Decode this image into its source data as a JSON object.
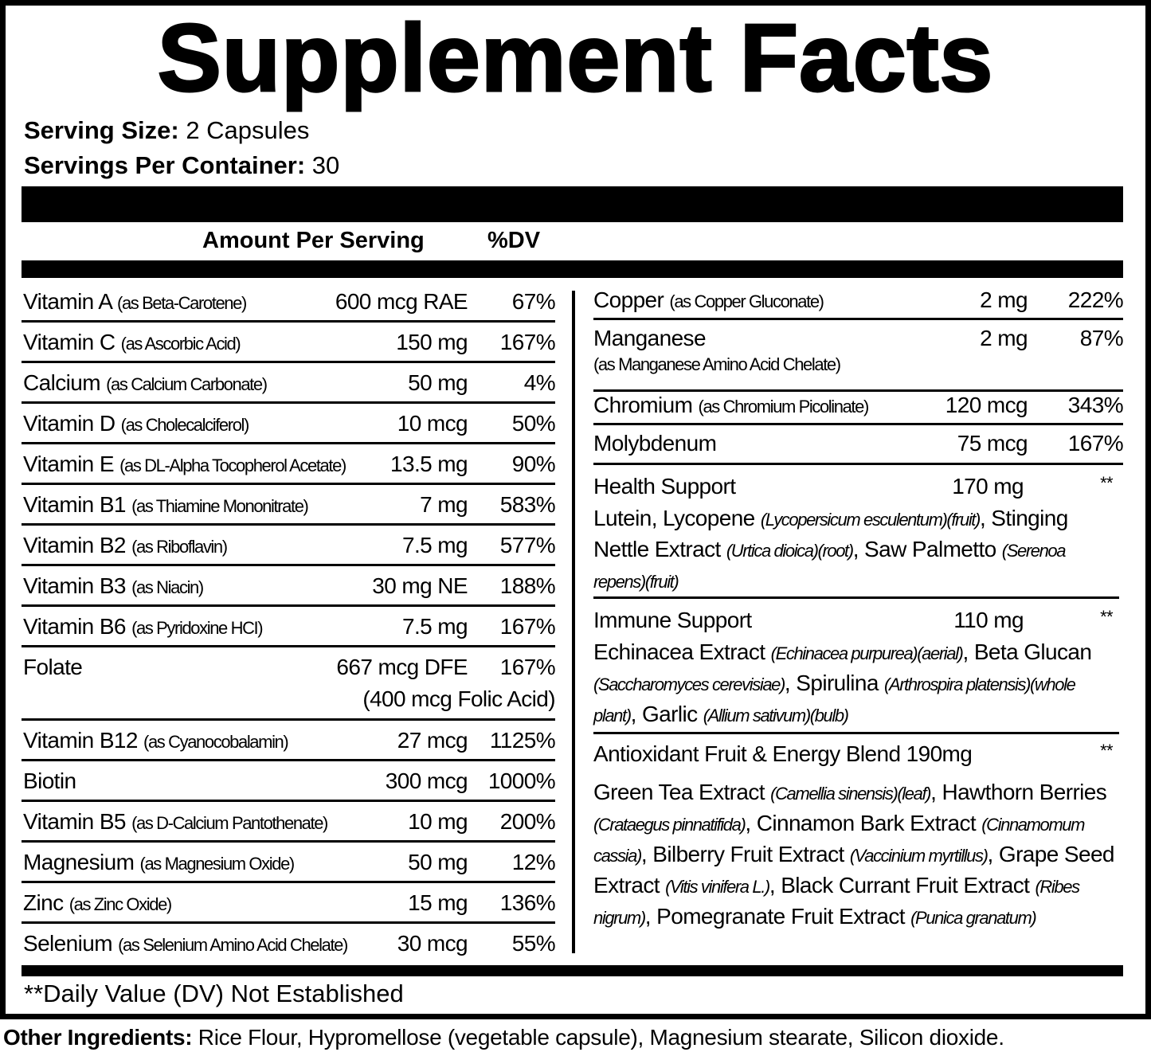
{
  "title": "Supplement Facts",
  "serving_size": {
    "label": "Serving Size:",
    "value": "2 Capsules"
  },
  "servings_per_container": {
    "label": "Servings Per Container:",
    "value": "30"
  },
  "header": {
    "amount": "Amount Per Serving",
    "dv": "%DV"
  },
  "left": [
    {
      "name": "Vitamin A",
      "sub": "(as Beta-Carotene)",
      "amount": "600 mcg RAE",
      "dv": "67%"
    },
    {
      "name": "Vitamin C",
      "sub": "(as Ascorbic Acid)",
      "amount": "150 mg",
      "dv": "167%"
    },
    {
      "name": "Calcium",
      "sub": "(as Calcium Carbonate)",
      "amount": "50 mg",
      "dv": "4%"
    },
    {
      "name": "Vitamin D",
      "sub": "(as Cholecalciferol)",
      "amount": "10 mcg",
      "dv": "50%"
    },
    {
      "name": "Vitamin E",
      "sub": "(as DL-Alpha Tocopherol Acetate)",
      "amount": "13.5 mg",
      "dv": "90%"
    },
    {
      "name": "Vitamin B1",
      "sub": "(as Thiamine Mononitrate)",
      "amount": "7 mg",
      "dv": "583%"
    },
    {
      "name": "Vitamin B2",
      "sub": "(as Riboflavin)",
      "amount": "7.5 mg",
      "dv": "577%"
    },
    {
      "name": "Vitamin B3",
      "sub": "(as Niacin)",
      "amount": "30 mg NE",
      "dv": "188%"
    },
    {
      "name": "Vitamin B6",
      "sub": "(as Pyridoxine HCI)",
      "amount": "7.5 mg",
      "dv": "167%"
    },
    {
      "name": "Folate",
      "sub": "",
      "amount": "667 mcg DFE",
      "dv": "167%",
      "amount2": "(400 mcg Folic Acid)"
    },
    {
      "name": "Vitamin B12",
      "sub": "(as Cyanocobalamin)",
      "amount": "27 mcg",
      "dv": "1125%"
    },
    {
      "name": "Biotin",
      "sub": "",
      "amount": "300 mcg",
      "dv": "1000%"
    },
    {
      "name": "Vitamin B5",
      "sub": "(as D-Calcium Pantothenate)",
      "amount": "10 mg",
      "dv": "200%"
    },
    {
      "name": "Magnesium",
      "sub": "(as Magnesium Oxide)",
      "amount": "50 mg",
      "dv": "12%"
    },
    {
      "name": "Zinc",
      "sub": "(as Zinc Oxide)",
      "amount": "15 mg",
      "dv": "136%"
    },
    {
      "name": "Selenium",
      "sub": "(as Selenium Amino Acid Chelate)",
      "amount": "30 mcg",
      "dv": "55%"
    }
  ],
  "right": [
    {
      "name": "Copper",
      "sub": "(as Copper Gluconate)",
      "amount": "2 mg",
      "dv": "222%"
    },
    {
      "name": "Manganese",
      "sub": "(as Manganese Amino Acid Chelate)",
      "amount": "2 mg",
      "dv": "87%"
    },
    {
      "name": "Chromium",
      "sub": "(as Chromium Picolinate)",
      "amount": "120 mcg",
      "dv": "343%"
    },
    {
      "name": "Molybdenum",
      "sub": "",
      "amount": "75 mcg",
      "dv": "167%"
    }
  ],
  "blends": [
    {
      "name": "Health Support",
      "amount": "170 mg",
      "dv": "**",
      "parts": [
        [
          "Lutein, Lycopene ",
          ""
        ],
        [
          "(Lycopersicum esculentum)(fruit)",
          "i"
        ],
        [
          ", Stinging Nettle Extract ",
          ""
        ],
        [
          "(Urtica dioica)(root)",
          "i"
        ],
        [
          ", Saw Palmetto ",
          ""
        ],
        [
          "(Serenoa repens)(fruit)",
          "i"
        ]
      ]
    },
    {
      "name": "Immune Support",
      "amount": "110 mg",
      "dv": "**",
      "parts": [
        [
          "Echinacea Extract ",
          ""
        ],
        [
          "(Echinacea purpurea)(aerial)",
          "i"
        ],
        [
          ", Beta Glucan ",
          ""
        ],
        [
          "(Saccharomyces cerevisiae)",
          "i"
        ],
        [
          ", Spirulina ",
          ""
        ],
        [
          "(Arthrospira platensis)(whole plant)",
          "i"
        ],
        [
          ", Garlic ",
          ""
        ],
        [
          "(Allium sativum)(bulb)",
          "i"
        ]
      ]
    },
    {
      "name": "Antioxidant Fruit & Energy Blend 190mg",
      "amount": "",
      "dv": "**",
      "parts": [
        [
          "Green Tea Extract ",
          ""
        ],
        [
          "(Camellia sinensis)(leaf)",
          "i"
        ],
        [
          ", Hawthorn Berries ",
          ""
        ],
        [
          "(Crataegus pinnatifida)",
          "i"
        ],
        [
          ", Cinnamon Bark Extract ",
          ""
        ],
        [
          "(Cinnamomum cassia)",
          "i"
        ],
        [
          ", Bilberry Fruit Extract ",
          ""
        ],
        [
          "(Vaccinium myrtillus)",
          "i"
        ],
        [
          ", Grape Seed Extract ",
          ""
        ],
        [
          "(Vitis vinifera L.)",
          "i"
        ],
        [
          ", Black Currant Fruit Extract ",
          ""
        ],
        [
          "(Ribes nigrum)",
          "i"
        ],
        [
          ", Pomegranate Fruit Extract ",
          ""
        ],
        [
          "(Punica granatum)",
          "i"
        ]
      ]
    }
  ],
  "footnote": "**Daily Value (DV) Not Established",
  "other_ingredients": {
    "label": "Other Ingredients:",
    "value": " Rice Flour, Hypromellose (vegetable capsule), Magnesium stearate, Silicon dioxide."
  }
}
